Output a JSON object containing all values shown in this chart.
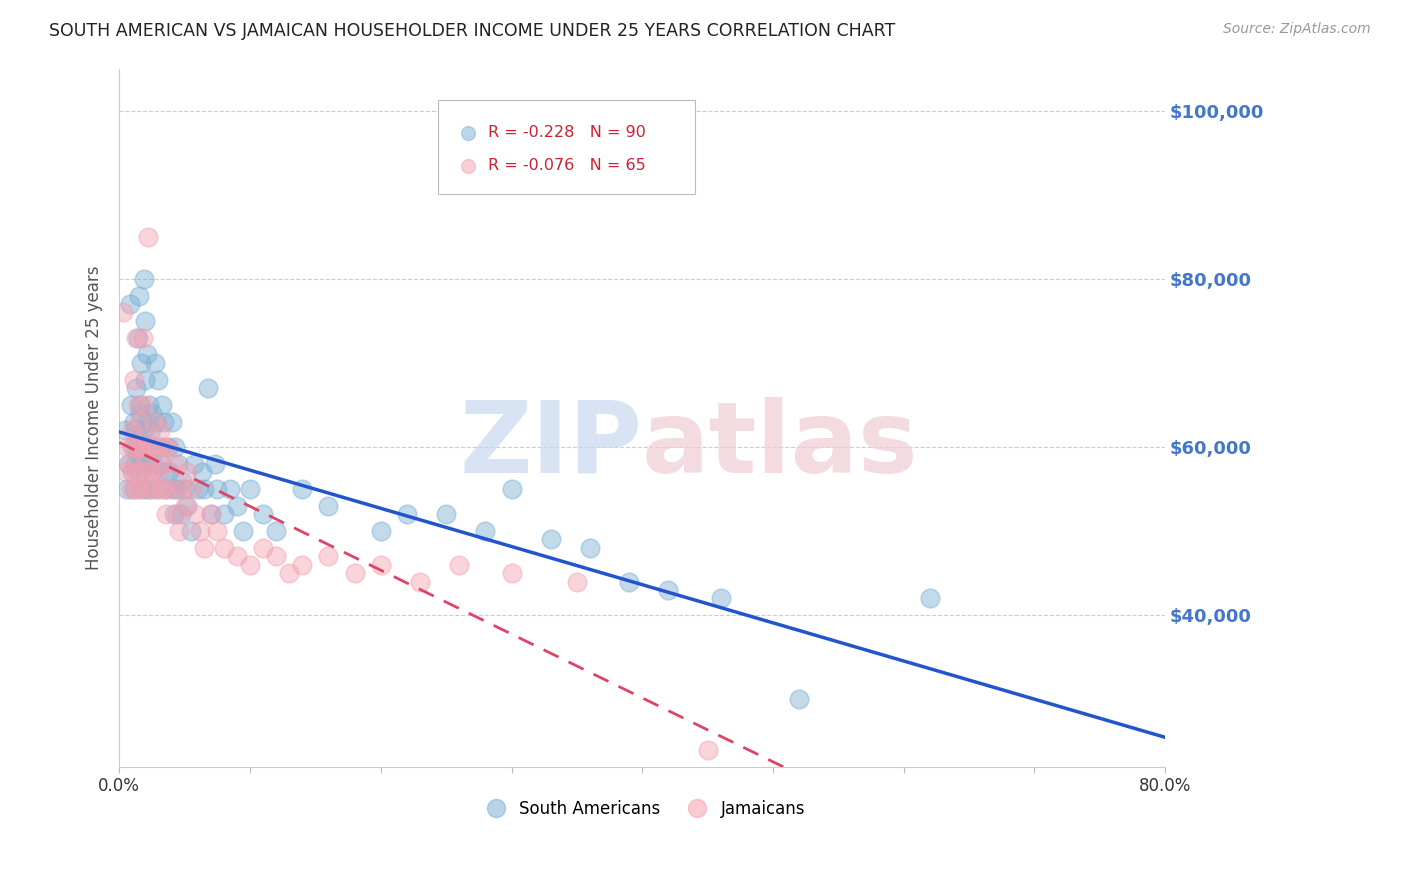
{
  "title": "SOUTH AMERICAN VS JAMAICAN HOUSEHOLDER INCOME UNDER 25 YEARS CORRELATION CHART",
  "source": "Source: ZipAtlas.com",
  "ylabel": "Householder Income Under 25 years",
  "xlim": [
    0.0,
    0.8
  ],
  "ylim": [
    22000,
    105000
  ],
  "yticks": [
    40000,
    60000,
    80000,
    100000
  ],
  "ytick_labels": [
    "$40,000",
    "$60,000",
    "$80,000",
    "$100,000"
  ],
  "south_american_color": "#7bafd4",
  "jamaican_color": "#f4a0b0",
  "trend_sa_color": "#2255cc",
  "trend_ja_color": "#dd4466",
  "background_color": "#ffffff",
  "south_americans_x": [
    0.004,
    0.006,
    0.007,
    0.008,
    0.009,
    0.01,
    0.01,
    0.011,
    0.011,
    0.012,
    0.012,
    0.013,
    0.013,
    0.014,
    0.014,
    0.015,
    0.015,
    0.015,
    0.016,
    0.016,
    0.017,
    0.017,
    0.018,
    0.018,
    0.019,
    0.019,
    0.02,
    0.02,
    0.021,
    0.021,
    0.022,
    0.022,
    0.023,
    0.023,
    0.024,
    0.025,
    0.025,
    0.026,
    0.027,
    0.028,
    0.029,
    0.03,
    0.031,
    0.032,
    0.033,
    0.034,
    0.035,
    0.036,
    0.037,
    0.038,
    0.04,
    0.041,
    0.042,
    0.043,
    0.044,
    0.045,
    0.047,
    0.048,
    0.05,
    0.052,
    0.055,
    0.057,
    0.06,
    0.063,
    0.065,
    0.068,
    0.07,
    0.073,
    0.075,
    0.08,
    0.085,
    0.09,
    0.095,
    0.1,
    0.11,
    0.12,
    0.14,
    0.16,
    0.2,
    0.22,
    0.25,
    0.28,
    0.3,
    0.33,
    0.36,
    0.39,
    0.42,
    0.46,
    0.52,
    0.62
  ],
  "south_americans_y": [
    62000,
    55000,
    58000,
    77000,
    65000,
    60000,
    57000,
    63000,
    55000,
    58000,
    62000,
    60000,
    67000,
    59000,
    73000,
    61000,
    57000,
    78000,
    65000,
    64000,
    70000,
    58000,
    55000,
    60000,
    62000,
    80000,
    75000,
    68000,
    63000,
    71000,
    58000,
    55000,
    65000,
    60000,
    62000,
    57000,
    64000,
    58000,
    70000,
    63000,
    55000,
    68000,
    60000,
    58000,
    65000,
    63000,
    57000,
    55000,
    60000,
    57000,
    63000,
    55000,
    52000,
    60000,
    55000,
    58000,
    52000,
    56000,
    55000,
    53000,
    50000,
    58000,
    55000,
    57000,
    55000,
    67000,
    52000,
    58000,
    55000,
    52000,
    55000,
    53000,
    50000,
    55000,
    52000,
    50000,
    55000,
    53000,
    50000,
    52000,
    52000,
    50000,
    55000,
    49000,
    48000,
    44000,
    43000,
    42000,
    30000,
    42000
  ],
  "jamaicans_x": [
    0.003,
    0.005,
    0.006,
    0.008,
    0.009,
    0.01,
    0.011,
    0.011,
    0.012,
    0.013,
    0.013,
    0.014,
    0.015,
    0.015,
    0.016,
    0.016,
    0.017,
    0.018,
    0.019,
    0.02,
    0.02,
    0.021,
    0.022,
    0.023,
    0.024,
    0.025,
    0.026,
    0.027,
    0.028,
    0.03,
    0.031,
    0.032,
    0.033,
    0.034,
    0.035,
    0.036,
    0.038,
    0.04,
    0.042,
    0.044,
    0.046,
    0.048,
    0.05,
    0.052,
    0.055,
    0.058,
    0.062,
    0.065,
    0.07,
    0.075,
    0.08,
    0.09,
    0.1,
    0.11,
    0.12,
    0.13,
    0.14,
    0.16,
    0.18,
    0.2,
    0.23,
    0.26,
    0.3,
    0.35,
    0.45
  ],
  "jamaicans_y": [
    76000,
    57000,
    60000,
    58000,
    55000,
    62000,
    68000,
    60000,
    57000,
    55000,
    73000,
    65000,
    60000,
    63000,
    57000,
    55000,
    60000,
    73000,
    65000,
    61000,
    59000,
    57000,
    85000,
    55000,
    60000,
    57000,
    55000,
    63000,
    60000,
    57000,
    62000,
    55000,
    58000,
    60000,
    55000,
    52000,
    60000,
    55000,
    58000,
    52000,
    50000,
    55000,
    53000,
    57000,
    55000,
    52000,
    50000,
    48000,
    52000,
    50000,
    48000,
    47000,
    46000,
    48000,
    47000,
    45000,
    46000,
    47000,
    45000,
    46000,
    44000,
    46000,
    45000,
    44000,
    24000
  ]
}
